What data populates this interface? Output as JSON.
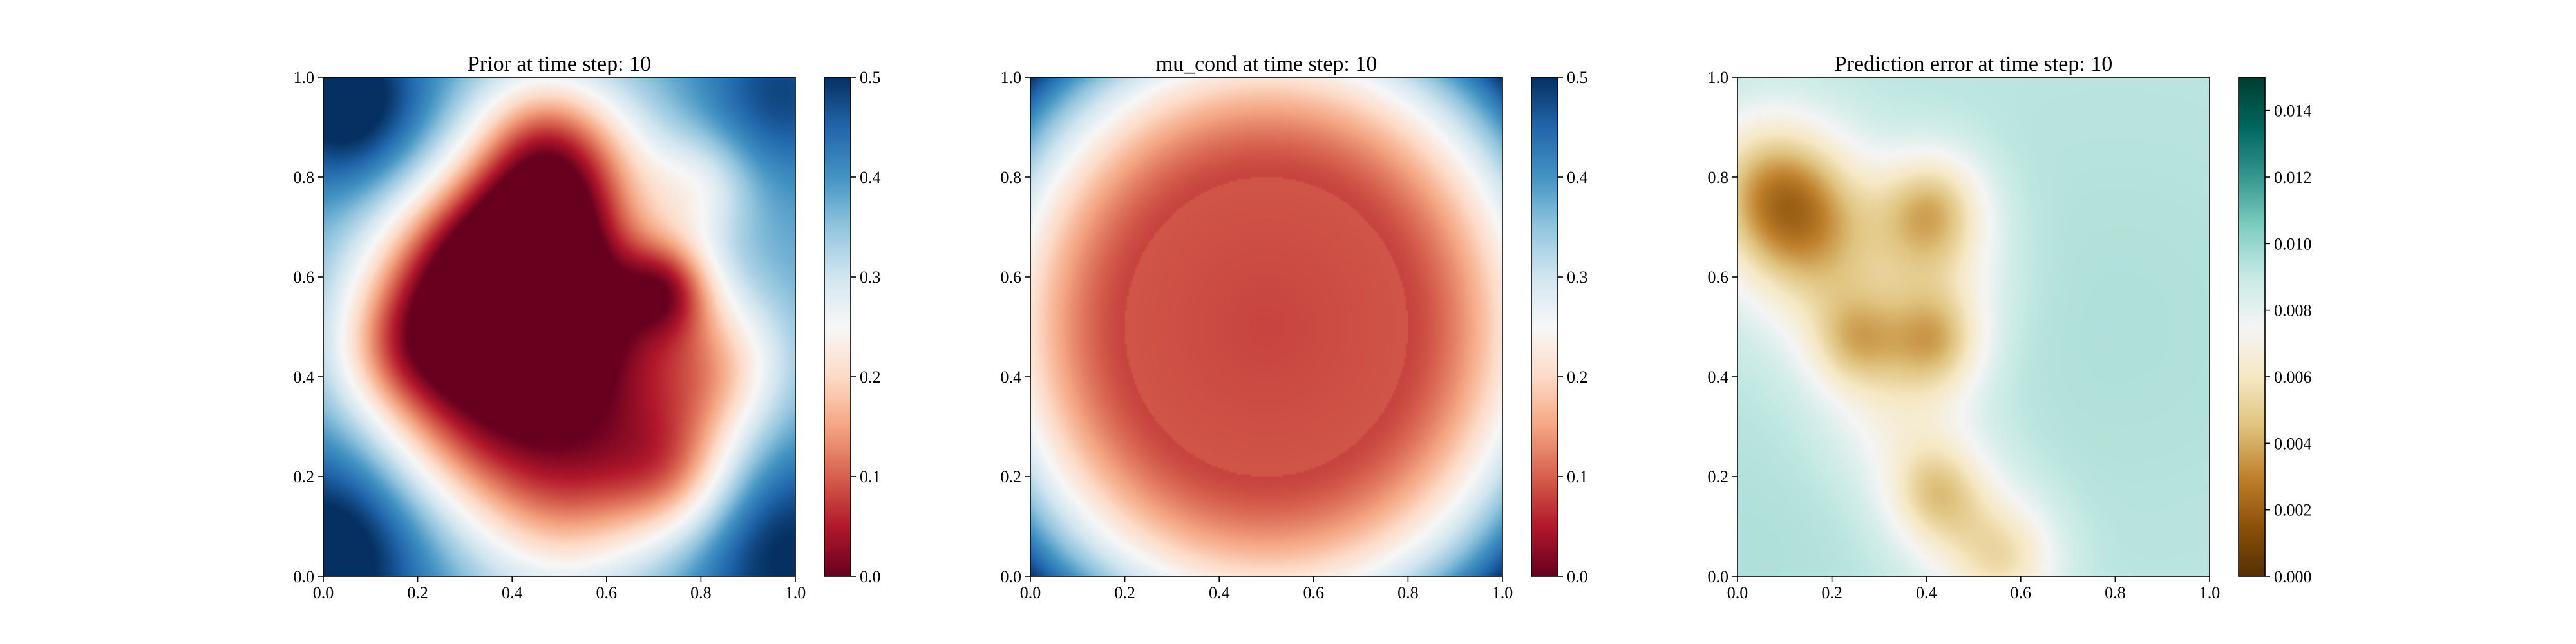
{
  "figure": {
    "background": "#ffffff"
  },
  "chart_data": [
    {
      "type": "heatmap",
      "title": "Prior at time step: 10",
      "xlabel": "",
      "ylabel": "",
      "xlim": [
        0.0,
        1.0
      ],
      "ylim": [
        0.0,
        1.0
      ],
      "xticks": [
        "0.0",
        "0.2",
        "0.4",
        "0.6",
        "0.8",
        "1.0"
      ],
      "yticks": [
        "0.0",
        "0.2",
        "0.4",
        "0.6",
        "0.8",
        "1.0"
      ],
      "grid": false,
      "colormap": "RdBu",
      "colormap_stops": [
        "#67001f",
        "#b2182b",
        "#d6604d",
        "#f4a582",
        "#fddbc7",
        "#f7f7f7",
        "#d1e5f0",
        "#92c5de",
        "#4393c3",
        "#2166ac",
        "#053061"
      ],
      "colorbar": {
        "range": [
          0.0,
          0.5
        ],
        "ticks": [
          "0.0",
          "0.1",
          "0.2",
          "0.3",
          "0.4",
          "0.5"
        ]
      },
      "field": {
        "base": 0.38,
        "blobs": [
          {
            "x": 0.42,
            "y": 0.72,
            "r": 0.13,
            "a": -0.22
          },
          {
            "x": 0.38,
            "y": 0.5,
            "r": 0.16,
            "a": -0.24
          },
          {
            "x": 0.55,
            "y": 0.55,
            "r": 0.14,
            "a": -0.22
          },
          {
            "x": 0.73,
            "y": 0.58,
            "r": 0.07,
            "a": -0.18
          },
          {
            "x": 0.3,
            "y": 0.3,
            "r": 0.14,
            "a": -0.17
          },
          {
            "x": 0.62,
            "y": 0.3,
            "r": 0.15,
            "a": -0.17
          },
          {
            "x": 0.5,
            "y": 0.15,
            "r": 0.14,
            "a": -0.15
          },
          {
            "x": 0.75,
            "y": 0.2,
            "r": 0.1,
            "a": -0.14
          },
          {
            "x": 0.25,
            "y": 0.6,
            "r": 0.13,
            "a": -0.17
          },
          {
            "x": 0.83,
            "y": 0.42,
            "r": 0.11,
            "a": -0.16
          },
          {
            "x": 0.55,
            "y": 0.82,
            "r": 0.12,
            "a": -0.15
          },
          {
            "x": 0.45,
            "y": 0.9,
            "r": 0.1,
            "a": -0.1
          },
          {
            "x": 0.15,
            "y": 0.45,
            "r": 0.1,
            "a": -0.12
          },
          {
            "x": 0.8,
            "y": 0.78,
            "r": 0.08,
            "a": -0.1
          },
          {
            "x": 0.05,
            "y": 0.95,
            "r": 0.12,
            "a": 0.16
          },
          {
            "x": 0.02,
            "y": 0.05,
            "r": 0.15,
            "a": 0.16
          },
          {
            "x": 0.97,
            "y": 0.97,
            "r": 0.12,
            "a": 0.1
          },
          {
            "x": 0.97,
            "y": 0.05,
            "r": 0.15,
            "a": 0.13
          }
        ]
      }
    },
    {
      "type": "heatmap",
      "title": "mu_cond at time step: 10",
      "xlabel": "",
      "ylabel": "",
      "xlim": [
        0.0,
        1.0
      ],
      "ylim": [
        0.0,
        1.0
      ],
      "xticks": [
        "0.0",
        "0.2",
        "0.4",
        "0.6",
        "0.8",
        "1.0"
      ],
      "yticks": [
        "0.0",
        "0.2",
        "0.4",
        "0.6",
        "0.8",
        "1.0"
      ],
      "grid": false,
      "colormap": "RdBu",
      "colormap_stops": [
        "#67001f",
        "#b2182b",
        "#d6604d",
        "#f4a582",
        "#fddbc7",
        "#f7f7f7",
        "#d1e5f0",
        "#92c5de",
        "#4393c3",
        "#2166ac",
        "#053061"
      ],
      "colorbar": {
        "range": [
          0.0,
          0.5
        ],
        "ticks": [
          "0.0",
          "0.1",
          "0.2",
          "0.3",
          "0.4",
          "0.5"
        ]
      },
      "field": {
        "radial": {
          "cx": 0.5,
          "cy": 0.5,
          "inner": 0.08,
          "outer": 0.52,
          "edge": 0.44
        }
      }
    },
    {
      "type": "heatmap",
      "title": "Prediction error at time step: 10",
      "xlabel": "",
      "ylabel": "",
      "xlim": [
        0.0,
        1.0
      ],
      "ylim": [
        0.0,
        1.0
      ],
      "xticks": [
        "0.0",
        "0.2",
        "0.4",
        "0.6",
        "0.8",
        "1.0"
      ],
      "yticks": [
        "0.0",
        "0.2",
        "0.4",
        "0.6",
        "0.8",
        "1.0"
      ],
      "grid": false,
      "colormap": "BrBG",
      "colormap_stops": [
        "#543005",
        "#8c510a",
        "#bf812d",
        "#dfc27d",
        "#f6e8c3",
        "#f5f5f5",
        "#c7eae5",
        "#80cdc1",
        "#35978f",
        "#01665e",
        "#003c30"
      ],
      "colorbar": {
        "range": [
          0.0,
          0.015
        ],
        "ticks": [
          "0.000",
          "0.002",
          "0.004",
          "0.006",
          "0.008",
          "0.010",
          "0.012",
          "0.014"
        ]
      },
      "field": {
        "base": 0.0092,
        "blobs": [
          {
            "x": 0.12,
            "y": 0.73,
            "r": 0.11,
            "a": -0.005
          },
          {
            "x": 0.41,
            "y": 0.74,
            "r": 0.08,
            "a": -0.0042
          },
          {
            "x": 0.25,
            "y": 0.47,
            "r": 0.07,
            "a": -0.0033
          },
          {
            "x": 0.42,
            "y": 0.47,
            "r": 0.07,
            "a": -0.0035
          },
          {
            "x": 0.42,
            "y": 0.17,
            "r": 0.07,
            "a": -0.003
          },
          {
            "x": 0.57,
            "y": 0.03,
            "r": 0.08,
            "a": -0.0028
          },
          {
            "x": 0.2,
            "y": 0.6,
            "r": 0.12,
            "a": -0.002
          },
          {
            "x": 0.42,
            "y": 0.6,
            "r": 0.1,
            "a": -0.0022
          },
          {
            "x": 0.35,
            "y": 0.33,
            "r": 0.11,
            "a": -0.0022
          },
          {
            "x": 0.48,
            "y": 0.1,
            "r": 0.1,
            "a": -0.0018
          },
          {
            "x": 0.05,
            "y": 0.8,
            "r": 0.1,
            "a": -0.0022
          },
          {
            "x": 0.02,
            "y": 0.05,
            "r": 0.2,
            "a": 0.0003
          },
          {
            "x": 0.8,
            "y": 0.5,
            "r": 0.3,
            "a": 0.0003
          }
        ]
      }
    }
  ]
}
